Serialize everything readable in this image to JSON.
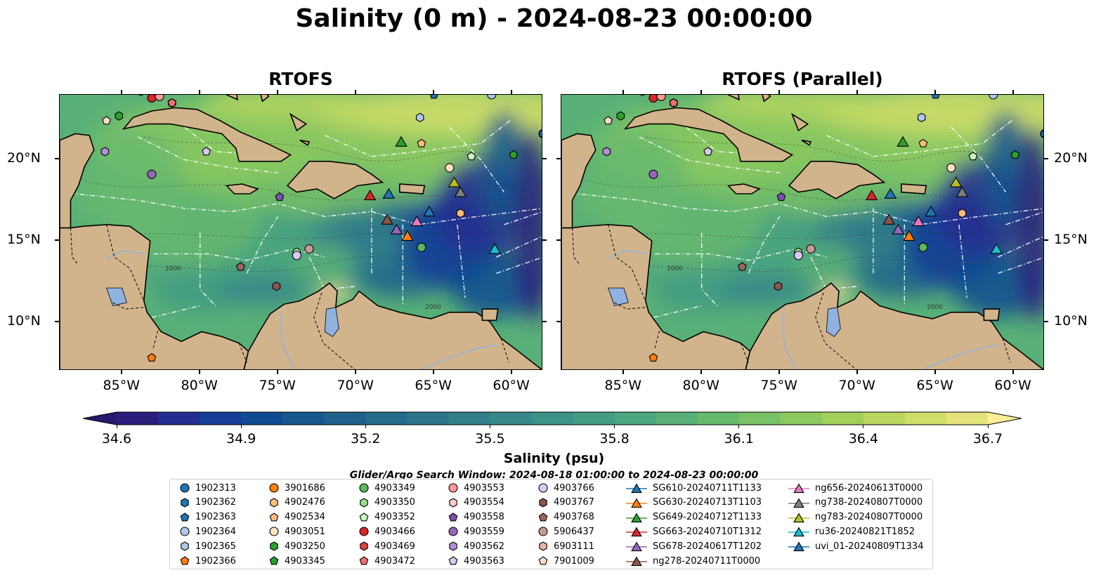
{
  "title": "Salinity (0 m) - 2024-08-23 00:00:00",
  "panels": [
    {
      "title": "RTOFS"
    },
    {
      "title": "RTOFS (Parallel)"
    }
  ],
  "lon_ticks": [
    "85°W",
    "80°W",
    "75°W",
    "70°W",
    "65°W",
    "60°W"
  ],
  "lat_ticks": [
    "20°N",
    "15°N",
    "10°N"
  ],
  "map_extent": {
    "lon": [
      -89,
      -58
    ],
    "lat": [
      7,
      24
    ]
  },
  "contour_labels": [
    "1000",
    "2000"
  ],
  "colorbar": {
    "label": "Salinity (psu)",
    "ticks": [
      "34.6",
      "34.9",
      "35.2",
      "35.5",
      "35.8",
      "36.1",
      "36.4",
      "36.7"
    ],
    "range": [
      34.6,
      36.7
    ],
    "extend": "both",
    "colormap": "haline",
    "colors": [
      "#2a186c",
      "#2b1d7c",
      "#232c8f",
      "#143e96",
      "#0f4b92",
      "#16578e",
      "#1e618c",
      "#256b8b",
      "#2b768a",
      "#317f89",
      "#378888",
      "#3c9287",
      "#439c83",
      "#4ca67e",
      "#58b077",
      "#67b96e",
      "#78c166",
      "#8cc95e",
      "#a2cf5a",
      "#b9d75e",
      "#d0dd69",
      "#e5e47c",
      "#fdee99"
    ]
  },
  "search_window": "Glider/Argo Search Window: 2024-08-18 01:00:00 to 2024-08-23 00:00:00",
  "legend": [
    {
      "label": "1902313",
      "marker": "circle",
      "color": "#1f77b4"
    },
    {
      "label": "1902362",
      "marker": "hexagon",
      "color": "#1f77b4"
    },
    {
      "label": "1902363",
      "marker": "pentagon",
      "color": "#1f77b4"
    },
    {
      "label": "1902364",
      "marker": "circle",
      "color": "#aec7e8"
    },
    {
      "label": "1902365",
      "marker": "hexagon",
      "color": "#aec7e8"
    },
    {
      "label": "1902366",
      "marker": "pentagon",
      "color": "#ff7f0e"
    },
    {
      "label": "3901686",
      "marker": "circle",
      "color": "#ff7f0e"
    },
    {
      "label": "4902476",
      "marker": "hexagon",
      "color": "#ffbb78"
    },
    {
      "label": "4902534",
      "marker": "pentagon",
      "color": "#ffbb78"
    },
    {
      "label": "4903051",
      "marker": "circle",
      "color": "#ffe0c0"
    },
    {
      "label": "4903250",
      "marker": "hexagon",
      "color": "#2ca02c"
    },
    {
      "label": "4903345",
      "marker": "pentagon",
      "color": "#2ca02c"
    },
    {
      "label": "4903349",
      "marker": "circle",
      "color": "#5cb85c"
    },
    {
      "label": "4903350",
      "marker": "hexagon",
      "color": "#98df8a"
    },
    {
      "label": "4903352",
      "marker": "pentagon",
      "color": "#c8f5c0"
    },
    {
      "label": "4903466",
      "marker": "circle",
      "color": "#d62728"
    },
    {
      "label": "4903469",
      "marker": "hexagon",
      "color": "#e04040"
    },
    {
      "label": "4903472",
      "marker": "pentagon",
      "color": "#ef6f6f"
    },
    {
      "label": "4903553",
      "marker": "circle",
      "color": "#ff9896"
    },
    {
      "label": "4903554",
      "marker": "hexagon",
      "color": "#ffc8c8"
    },
    {
      "label": "4903558",
      "marker": "pentagon",
      "color": "#7d4fb2"
    },
    {
      "label": "4903559",
      "marker": "circle",
      "color": "#9467bd"
    },
    {
      "label": "4903562",
      "marker": "hexagon",
      "color": "#b08fd6"
    },
    {
      "label": "4903563",
      "marker": "pentagon",
      "color": "#d9c8f2"
    },
    {
      "label": "4903766",
      "marker": "circle",
      "color": "#dcc8f5"
    },
    {
      "label": "4903767",
      "marker": "hexagon",
      "color": "#8c564b"
    },
    {
      "label": "4903768",
      "marker": "pentagon",
      "color": "#9c665b"
    },
    {
      "label": "5906437",
      "marker": "circle",
      "color": "#c49c94"
    },
    {
      "label": "6903111",
      "marker": "hexagon",
      "color": "#e5b5a5"
    },
    {
      "label": "7901009",
      "marker": "pentagon",
      "color": "#ffd9c8"
    },
    {
      "label": "SG610-20240711T1133",
      "marker": "triangle",
      "color": "#1f77b4"
    },
    {
      "label": "SG630-20240713T1103",
      "marker": "triangle",
      "color": "#ff7f0e"
    },
    {
      "label": "SG649-20240712T1133",
      "marker": "triangle",
      "color": "#2ca02c"
    },
    {
      "label": "SG663-20240710T1312",
      "marker": "triangle",
      "color": "#d62728"
    },
    {
      "label": "SG678-20240617T1202",
      "marker": "triangle",
      "color": "#9467bd"
    },
    {
      "label": "ng278-20240711T0000",
      "marker": "triangle",
      "color": "#8c564b"
    },
    {
      "label": "ng656-20240613T0000",
      "marker": "triangle",
      "color": "#e377c2"
    },
    {
      "label": "ng738-20240807T0000",
      "marker": "triangle",
      "color": "#7f7f7f"
    },
    {
      "label": "ng783-20240807T0000",
      "marker": "triangle",
      "color": "#bcbd22"
    },
    {
      "label": "ru36-20240821T1852",
      "marker": "triangle",
      "color": "#17becf"
    },
    {
      "label": "uvi_01-20240809T1334",
      "marker": "triangle",
      "color": "#1f77b4"
    }
  ],
  "observations": [
    {
      "id": "1902313",
      "lon": -58.0,
      "lat": 21.6
    },
    {
      "id": "1902362",
      "lon": -58.0,
      "lat": 21.6
    },
    {
      "id": "1902363",
      "lon": -65.0,
      "lat": 24.0
    },
    {
      "id": "1902364",
      "lon": -61.3,
      "lat": 24.0
    },
    {
      "id": "1902365",
      "lon": -65.9,
      "lat": 22.6
    },
    {
      "id": "1902366",
      "lon": -83.1,
      "lat": 7.8
    },
    {
      "id": "4902476",
      "lon": -63.3,
      "lat": 16.7
    },
    {
      "id": "4902534",
      "lon": -65.8,
      "lat": 21.0
    },
    {
      "id": "4903051",
      "lon": -64.0,
      "lat": 19.5
    },
    {
      "id": "4903250",
      "lon": -85.2,
      "lat": 22.7
    },
    {
      "id": "4903345",
      "lon": -59.9,
      "lat": 20.3
    },
    {
      "id": "4903349",
      "lon": -65.8,
      "lat": 14.6
    },
    {
      "id": "4903350",
      "lon": -73.8,
      "lat": 14.3
    },
    {
      "id": "4903352",
      "lon": -62.6,
      "lat": 20.2
    },
    {
      "id": "4903466",
      "lon": -83.1,
      "lat": 23.8
    },
    {
      "id": "4903469",
      "lon": -81.8,
      "lat": 23.5
    },
    {
      "id": "4903472",
      "lon": -81.8,
      "lat": 23.5
    },
    {
      "id": "4903553",
      "lon": -82.6,
      "lat": 23.9
    },
    {
      "id": "4903554",
      "lon": -83.8,
      "lat": 24.2
    },
    {
      "id": "4903558",
      "lon": -74.9,
      "lat": 17.7
    },
    {
      "id": "4903559",
      "lon": -83.1,
      "lat": 19.1
    },
    {
      "id": "4903562",
      "lon": -86.1,
      "lat": 20.5
    },
    {
      "id": "4903563",
      "lon": -79.6,
      "lat": 20.5
    },
    {
      "id": "4903766",
      "lon": -73.8,
      "lat": 14.1
    },
    {
      "id": "4903767",
      "lon": -75.1,
      "lat": 12.2
    },
    {
      "id": "4903768",
      "lon": -77.4,
      "lat": 13.4
    },
    {
      "id": "5906437",
      "lon": -73.0,
      "lat": 14.5
    },
    {
      "id": "7901009",
      "lon": -86.0,
      "lat": 22.4
    },
    {
      "id": "SG610-20240711T1133",
      "lon": -67.9,
      "lat": 17.9
    },
    {
      "id": "SG630-20240713T1103",
      "lon": -66.7,
      "lat": 15.3
    },
    {
      "id": "SG649-20240712T1133",
      "lon": -67.1,
      "lat": 21.1
    },
    {
      "id": "SG663-20240710T1312",
      "lon": -69.1,
      "lat": 17.8
    },
    {
      "id": "SG678-20240617T1202",
      "lon": -67.4,
      "lat": 15.7
    },
    {
      "id": "ng278-20240711T0000",
      "lon": -68.0,
      "lat": 16.3
    },
    {
      "id": "ng656-20240613T0000",
      "lon": -66.1,
      "lat": 16.2
    },
    {
      "id": "ng738-20240807T0000",
      "lon": -63.3,
      "lat": 18.0
    },
    {
      "id": "ng783-20240807T0000",
      "lon": -63.7,
      "lat": 18.6
    },
    {
      "id": "ru36-20240821T1852",
      "lon": -61.1,
      "lat": 14.5
    },
    {
      "id": "uvi_01-20240809T1334",
      "lon": -65.3,
      "lat": 16.8
    }
  ]
}
